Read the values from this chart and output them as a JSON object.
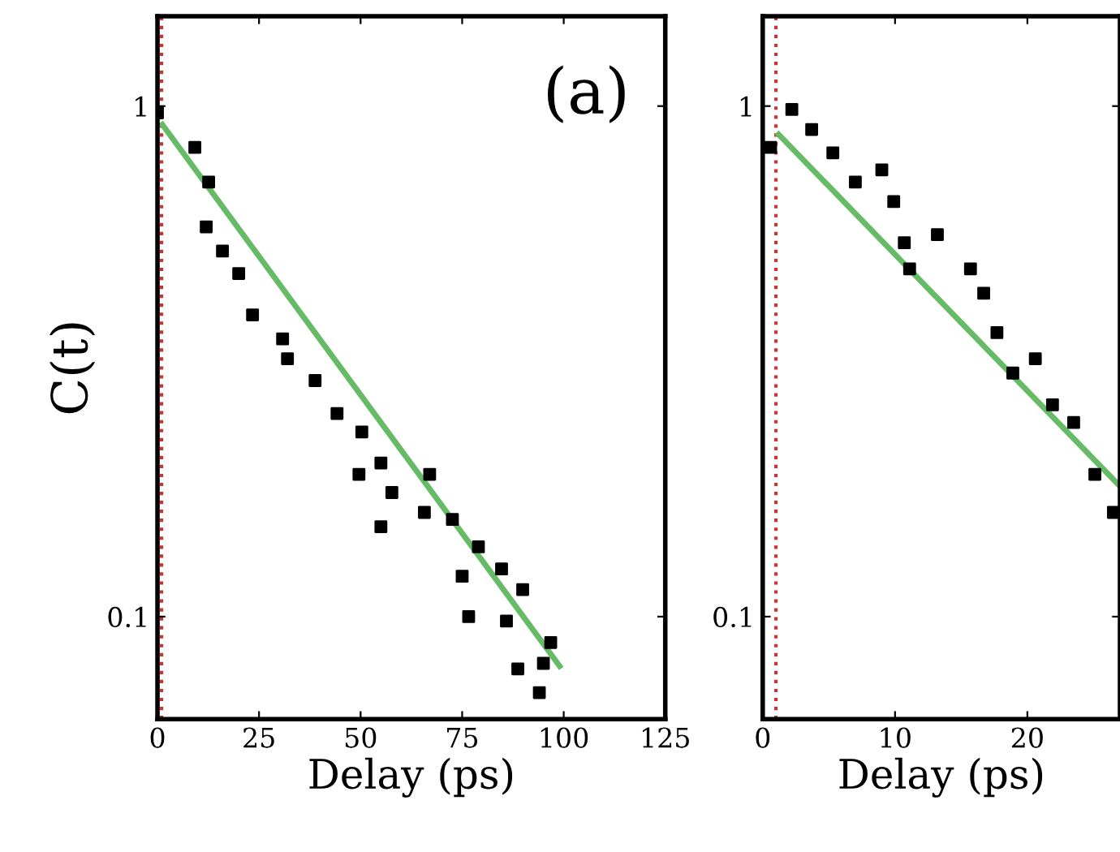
{
  "chart_data": [
    {
      "type": "scatter",
      "xlabel": "Delay (ps)",
      "ylabel": "C(t)",
      "annotations": [
        "(a)"
      ],
      "log": "y",
      "grid": false,
      "xlim": [
        0,
        125
      ],
      "xticks": [
        0,
        25,
        50,
        75,
        100,
        125
      ],
      "ylim": [
        0.063,
        1.5
      ],
      "yticks": [
        1,
        0.1
      ],
      "ref_lines": [
        {
          "axis": "x",
          "value": 1,
          "color": "#cc3333",
          "line_style": "dotted"
        }
      ],
      "series": [
        {
          "marker": "square",
          "color": "#000000",
          "x": [
            0,
            9.2,
            12.6,
            12,
            16,
            20,
            23.4,
            30.8,
            32,
            38.8,
            44.2,
            50.3,
            49.6,
            55,
            57.7,
            55,
            67,
            65.7,
            72.6,
            79,
            75,
            84.7,
            76.6,
            85.9,
            89.9,
            96.8,
            88.7,
            95,
            94
          ],
          "values": [
            0.97,
            0.83,
            0.71,
            0.58,
            0.52,
            0.47,
            0.39,
            0.35,
            0.32,
            0.29,
            0.25,
            0.23,
            0.19,
            0.2,
            0.175,
            0.15,
            0.19,
            0.16,
            0.155,
            0.137,
            0.12,
            0.124,
            0.1,
            0.098,
            0.113,
            0.089,
            0.079,
            0.081,
            0.071
          ]
        },
        {
          "type": "line",
          "color": "#66bb66",
          "x": [
            1.2,
            99
          ],
          "values": [
            0.92,
            0.08
          ]
        }
      ]
    },
    {
      "type": "scatter",
      "xlabel": "Delay (ps)",
      "log": "y",
      "grid": false,
      "xlim": [
        0,
        27
      ],
      "xticks": [
        0,
        10,
        20
      ],
      "ylim": [
        0.063,
        1.5
      ],
      "yticks": [
        1,
        0.1
      ],
      "ref_lines": [
        {
          "axis": "x",
          "value": 1,
          "color": "#cc3333",
          "line_style": "dotted"
        }
      ],
      "series": [
        {
          "marker": "square",
          "color": "#000000",
          "x": [
            2.2,
            0.6,
            3.7,
            5.3,
            7.0,
            9.0,
            9.9,
            10.7,
            11.1,
            13.2,
            15.7,
            16.7,
            17.7,
            18.9,
            20.6,
            21.9,
            23.5,
            25.1,
            26.5
          ],
          "values": [
            0.985,
            0.83,
            0.9,
            0.81,
            0.71,
            0.75,
            0.65,
            0.54,
            0.48,
            0.56,
            0.48,
            0.43,
            0.36,
            0.3,
            0.32,
            0.26,
            0.24,
            0.19,
            0.16
          ]
        },
        {
          "type": "line",
          "color": "#66bb66",
          "x": [
            1.2,
            27
          ],
          "values": [
            0.88,
            0.18
          ]
        }
      ]
    }
  ]
}
